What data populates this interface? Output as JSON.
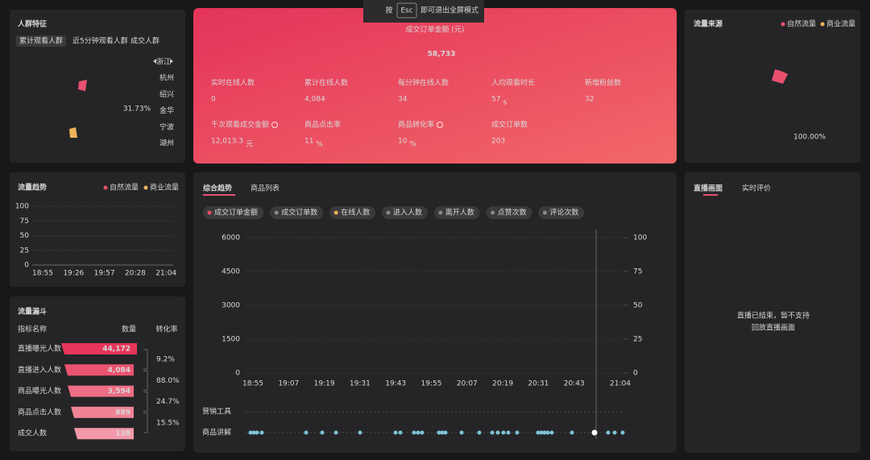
{
  "esc_hint": {
    "prefix": "按",
    "key": "Esc",
    "suffix": "即可退出全屏模式"
  },
  "audience": {
    "title": "人群特征",
    "tabs": [
      "累计观看人群",
      "近5分钟观看人群",
      "成交人群"
    ],
    "region": "浙江",
    "cities": [
      "杭州",
      "绍兴",
      "金华",
      "宁波",
      "湖州"
    ],
    "share": "31.73%"
  },
  "kpi": {
    "main_label": "成交订单金额 (元)",
    "main_value": "58,733",
    "items": [
      {
        "label": "实时在线人数",
        "value": "0"
      },
      {
        "label": "累计在线人数",
        "value": "4,084"
      },
      {
        "label": "每分钟在线人数",
        "value": "34"
      },
      {
        "label": "人均观看时长",
        "value": "57",
        "unit": "s"
      },
      {
        "label": "新增粉丝数",
        "value": "32"
      },
      {
        "label": "千次观看成交金额",
        "value": "12,013.3",
        "unit": "元",
        "help": true
      },
      {
        "label": "商品点击率",
        "value": "11",
        "unit": "%"
      },
      {
        "label": "商品转化率",
        "value": "10",
        "unit": "%",
        "help": true
      },
      {
        "label": "成交订单数",
        "value": "203"
      }
    ]
  },
  "traffic_source": {
    "title": "流量来源",
    "legend": [
      {
        "name": "自然流量",
        "color": "#e8506e"
      },
      {
        "name": "商业流量",
        "color": "#f0b25a"
      }
    ],
    "share": "100.00%"
  },
  "traffic_trend": {
    "title": "流量趋势",
    "legend": [
      {
        "name": "自然流量",
        "color": "#e8506e"
      },
      {
        "name": "商业流量",
        "color": "#f0b25a"
      }
    ],
    "ylim": [
      0,
      100
    ],
    "yticks": [
      0,
      25,
      50,
      75,
      100
    ],
    "xticks": [
      "18:55",
      "19:26",
      "19:57",
      "20:28",
      "21:04"
    ]
  },
  "funnel": {
    "title": "流量漏斗",
    "headers": [
      "指标名称",
      "数量",
      "转化率"
    ],
    "rows": [
      {
        "label": "直播曝光人数",
        "value": "44,172"
      },
      {
        "label": "直播进入人数",
        "value": "4,084"
      },
      {
        "label": "商品曝光人数",
        "value": "3,594"
      },
      {
        "label": "商品点击人数",
        "value": "889"
      },
      {
        "label": "成交人数",
        "value": "138"
      }
    ],
    "rates": [
      "9.2%",
      "88.0%",
      "24.7%",
      "15.5%"
    ]
  },
  "main_trend": {
    "tabs": [
      "综合趋势",
      "商品列表"
    ],
    "metrics": [
      {
        "name": "成交订单金额",
        "color": "#e8506e"
      },
      {
        "name": "成交订单数",
        "color": "#8a8a8a"
      },
      {
        "name": "在线人数",
        "color": "#f0b25a"
      },
      {
        "name": "进入人数",
        "color": "#8a8a8a"
      },
      {
        "name": "离开人数",
        "color": "#8a8a8a"
      },
      {
        "name": "点赞次数",
        "color": "#8a8a8a"
      },
      {
        "name": "评论次数",
        "color": "#8a8a8a"
      }
    ],
    "ylim": [
      0,
      6000
    ],
    "yticks": [
      0,
      1500,
      3000,
      4500,
      6000
    ],
    "y2lim": [
      0,
      100
    ],
    "y2ticks": [
      0,
      25,
      50,
      75,
      100
    ],
    "xticks": [
      "18:55",
      "19:07",
      "19:19",
      "19:31",
      "19:43",
      "19:55",
      "20:07",
      "20:19",
      "20:31",
      "20:43",
      "21:04"
    ],
    "rows": [
      "营销工具",
      "商品讲解"
    ]
  },
  "live": {
    "tabs": [
      "直播画面",
      "实时评价"
    ],
    "message": [
      "直播已结束，暂不支持",
      "回放直播画面"
    ]
  }
}
